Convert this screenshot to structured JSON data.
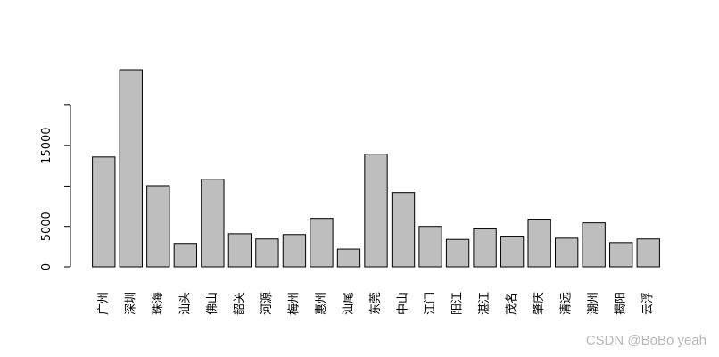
{
  "chart_data": {
    "type": "bar",
    "categories": [
      "广州",
      "深圳",
      "珠海",
      "汕头",
      "佛山",
      "韶关",
      "河源",
      "梅州",
      "惠州",
      "汕尾",
      "东莞",
      "中山",
      "江门",
      "阳江",
      "湛江",
      "茂名",
      "肇庆",
      "清远",
      "潮州",
      "揭阳",
      "云浮"
    ],
    "values": [
      13600,
      24400,
      10050,
      2900,
      10850,
      4100,
      3450,
      4000,
      6000,
      2200,
      13950,
      9200,
      5000,
      3400,
      4700,
      3800,
      5900,
      3550,
      5450,
      3000,
      3450
    ],
    "y_ticks": [
      0,
      5000,
      10000,
      15000,
      20000
    ],
    "y_tick_labels": [
      "0",
      "5000",
      "",
      "15000",
      ""
    ],
    "ylim": [
      0,
      24400
    ],
    "bar_color": "#bebebe",
    "bar_stroke": "#000000",
    "grid": false,
    "title": "",
    "xlabel": "",
    "ylabel": ""
  },
  "watermark": "CSDN @BoBo yeah"
}
